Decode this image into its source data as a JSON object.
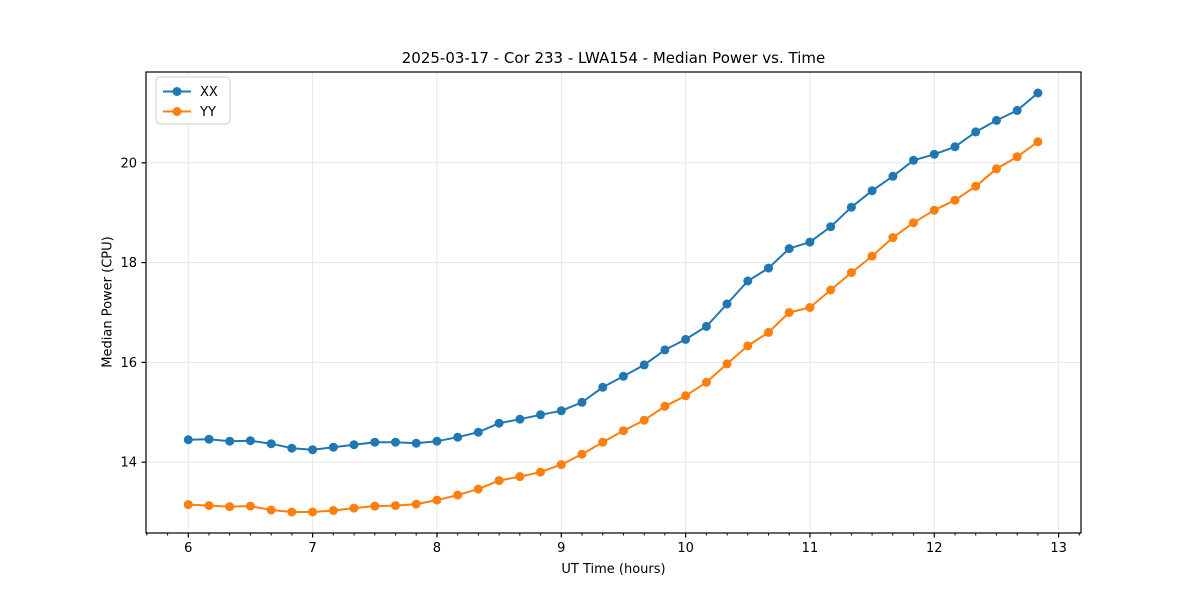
{
  "chart_data": {
    "type": "line",
    "title": "2025-03-17 - Cor 233 - LWA154 - Median Power vs. Time",
    "xlabel": "UT Time (hours)",
    "ylabel": "Median Power (CPU)",
    "xlim": [
      5.66,
      13.18
    ],
    "ylim": [
      12.58,
      21.82
    ],
    "xticks": [
      6,
      7,
      8,
      9,
      10,
      11,
      12,
      13
    ],
    "yticks": [
      14,
      16,
      18,
      20
    ],
    "x_minor_subdivisions": 6,
    "grid": true,
    "grid_color": "#e6e6e6",
    "spine_color": "#000000",
    "background_color": "#ffffff",
    "legend_position": "upper-left",
    "marker": "o",
    "x": [
      6.0,
      6.167,
      6.333,
      6.5,
      6.667,
      6.833,
      7.0,
      7.167,
      7.333,
      7.5,
      7.667,
      7.833,
      8.0,
      8.167,
      8.333,
      8.5,
      8.667,
      8.833,
      9.0,
      9.167,
      9.333,
      9.5,
      9.667,
      9.833,
      10.0,
      10.167,
      10.333,
      10.5,
      10.667,
      10.833,
      11.0,
      11.167,
      11.333,
      11.5,
      11.667,
      11.833,
      12.0,
      12.167,
      12.333,
      12.5,
      12.667,
      12.833
    ],
    "series": [
      {
        "name": "XX",
        "color": "#1f77b4",
        "values": [
          14.45,
          14.46,
          14.42,
          14.43,
          14.37,
          14.28,
          14.25,
          14.3,
          14.35,
          14.4,
          14.4,
          14.38,
          14.42,
          14.5,
          14.6,
          14.78,
          14.86,
          14.95,
          15.03,
          15.2,
          15.5,
          15.72,
          15.95,
          16.25,
          16.46,
          16.72,
          17.17,
          17.63,
          17.89,
          18.28,
          18.41,
          18.72,
          19.11,
          19.44,
          19.73,
          20.05,
          20.17,
          20.32,
          20.62,
          20.85,
          21.05,
          21.4
        ]
      },
      {
        "name": "YY",
        "color": "#ff7f0e",
        "values": [
          13.15,
          13.13,
          13.11,
          13.12,
          13.04,
          13.0,
          13.0,
          13.03,
          13.08,
          13.12,
          13.13,
          13.16,
          13.24,
          13.34,
          13.46,
          13.63,
          13.71,
          13.8,
          13.95,
          14.16,
          14.4,
          14.63,
          14.84,
          15.12,
          15.33,
          15.6,
          15.97,
          16.33,
          16.6,
          17.0,
          17.1,
          17.45,
          17.8,
          18.13,
          18.5,
          18.8,
          19.05,
          19.25,
          19.53,
          19.88,
          20.12,
          20.42
        ]
      }
    ]
  }
}
